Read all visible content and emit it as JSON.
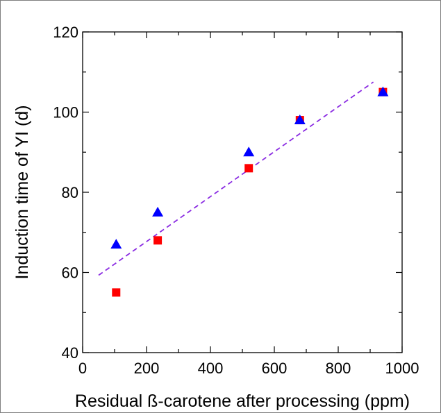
{
  "chart_data": {
    "type": "scatter",
    "title": "",
    "xlabel": "Residual ß-carotene after processing (ppm)",
    "ylabel": "Induction time of YI (d)",
    "xlim": [
      0,
      1000
    ],
    "ylim": [
      40,
      120
    ],
    "xticks": [
      "0",
      "200",
      "400",
      "600",
      "800",
      "1000"
    ],
    "yticks": [
      "40",
      "60",
      "80",
      "100",
      "120"
    ],
    "grid": false,
    "legend": "none",
    "series": [
      {
        "marker": "square",
        "color": "#ff0000",
        "points": [
          [
            105,
            55
          ],
          [
            235,
            68
          ],
          [
            520,
            86
          ],
          [
            680,
            98
          ],
          [
            940,
            105
          ]
        ]
      },
      {
        "marker": "triangle",
        "color": "#0000ff",
        "points": [
          [
            105,
            67
          ],
          [
            235,
            75
          ],
          [
            520,
            90
          ],
          [
            680,
            98
          ],
          [
            940,
            105
          ]
        ]
      }
    ],
    "trendline": {
      "style": "dashed",
      "color": "#8a2be2",
      "points": [
        [
          50,
          59.3
        ],
        [
          910,
          107.5
        ]
      ]
    }
  }
}
